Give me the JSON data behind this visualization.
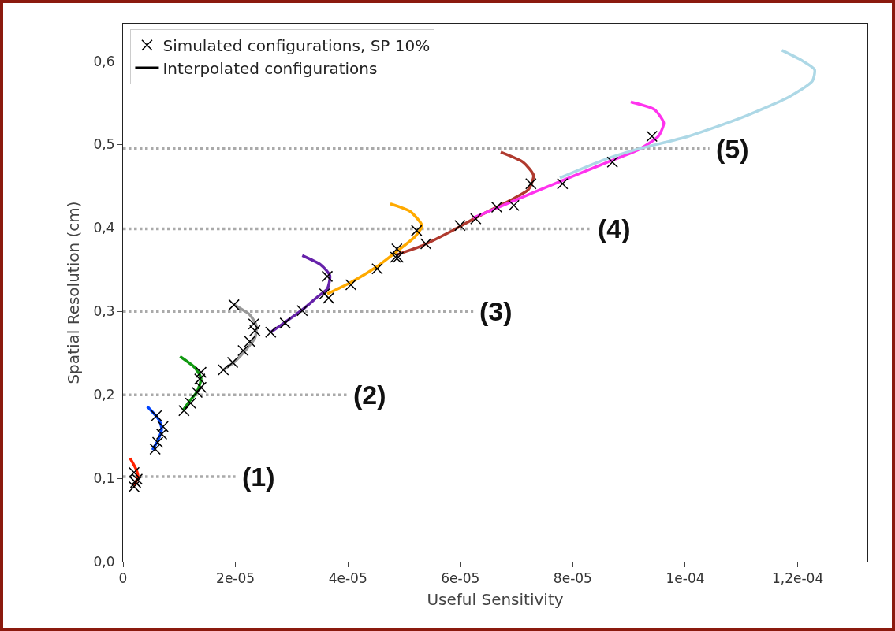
{
  "chart_data": {
    "type": "line",
    "xlabel": "Useful Sensitivity",
    "ylabel": "Spatial Resolution (cm)",
    "xlim": [
      0,
      0.0001324
    ],
    "ylim": [
      0,
      0.645
    ],
    "xticks": [
      0,
      {
        "value": 2e-05,
        "label": "2e-05"
      },
      {
        "value": 4e-05,
        "label": "4e-05"
      },
      {
        "value": 6e-05,
        "label": "6e-05"
      },
      {
        "value": 8e-05,
        "label": "8e-05"
      },
      {
        "value": 0.0001,
        "label": "1e-04"
      },
      {
        "value": 0.00012,
        "label": "1,2e-04"
      }
    ],
    "yticks": [
      {
        "value": 0,
        "label": "0,0"
      },
      {
        "value": 0.1,
        "label": "0,1"
      },
      {
        "value": 0.2,
        "label": "0,2"
      },
      {
        "value": 0.3,
        "label": "0,3"
      },
      {
        "value": 0.4,
        "label": "0,4"
      },
      {
        "value": 0.5,
        "label": "0,5"
      },
      {
        "value": 0.6,
        "label": "0,6"
      }
    ],
    "grid": false,
    "legend": "top left",
    "series": [
      {
        "color": "#aaaaaa",
        "line_style": "dotted",
        "marker": "none",
        "x": [
          0,
          2e-05
        ],
        "values": [
          0.102,
          0.102
        ]
      },
      {
        "color": "#aaaaaa",
        "line_style": "dotted",
        "marker": "none",
        "x": [
          0,
          3.98e-05
        ],
        "values": [
          0.2,
          0.2
        ]
      },
      {
        "color": "#aaaaaa",
        "line_style": "dotted",
        "marker": "none",
        "x": [
          0,
          6.23e-05
        ],
        "values": [
          0.3,
          0.3
        ]
      },
      {
        "color": "#aaaaaa",
        "line_style": "dotted",
        "marker": "none",
        "x": [
          0,
          8.33e-05
        ],
        "values": [
          0.399,
          0.399
        ]
      },
      {
        "color": "#aaaaaa",
        "line_style": "dotted",
        "marker": "none",
        "x": [
          0,
          0.0001043
        ],
        "values": [
          0.495,
          0.495
        ]
      },
      {
        "color": "#ff2200",
        "line_style": "solid",
        "marker": "none",
        "x": [
          1.26e-06,
          2.38e-06,
          2.66e-06,
          1.96e-06
        ],
        "values": [
          0.124,
          0.11,
          0.102,
          0.091
        ]
      },
      {
        "color": "#0044ff",
        "line_style": "solid",
        "marker": "none",
        "x": [
          4.31e-06,
          6.41e-06,
          6.87e-06,
          6.17e-06,
          5.23e-06
        ],
        "values": [
          0.186,
          0.17,
          0.159,
          0.145,
          0.134
        ]
      },
      {
        "color": "#119911",
        "line_style": "solid",
        "marker": "none",
        "x": [
          1.014e-05,
          1.272e-05,
          1.388e-05,
          1.318e-05,
          1.178e-05,
          1.062e-05
        ],
        "values": [
          0.246,
          0.233,
          0.22,
          0.204,
          0.192,
          0.181
        ]
      },
      {
        "color": "#999999",
        "line_style": "solid",
        "marker": "none",
        "x": [
          1.973e-05,
          2.254e-05,
          2.37e-05,
          2.346e-05,
          2.16e-05,
          1.973e-05,
          1.785e-05
        ],
        "values": [
          0.308,
          0.296,
          0.283,
          0.268,
          0.252,
          0.239,
          0.23
        ]
      },
      {
        "color": "#6622aa",
        "line_style": "solid",
        "marker": "none",
        "x": [
          3.188e-05,
          3.516e-05,
          3.679e-05,
          3.633e-05,
          3.468e-05,
          3.188e-05,
          2.861e-05,
          2.627e-05
        ],
        "values": [
          0.367,
          0.356,
          0.343,
          0.327,
          0.318,
          0.302,
          0.286,
          0.275
        ]
      },
      {
        "color": "#ffaa00",
        "line_style": "solid",
        "marker": "none",
        "x": [
          4.754e-05,
          5.105e-05,
          5.316e-05,
          5.199e-05,
          4.871e-05,
          4.498e-05,
          4.029e-05,
          3.633e-05
        ],
        "values": [
          0.429,
          0.42,
          0.403,
          0.39,
          0.372,
          0.353,
          0.334,
          0.321
        ]
      },
      {
        "color": "#b03a2e",
        "line_style": "solid",
        "marker": "none",
        "x": [
          6.718e-05,
          7.115e-05,
          7.302e-05,
          7.209e-05,
          6.882e-05,
          6.321e-05,
          5.806e-05,
          5.292e-05,
          4.871e-05
        ],
        "values": [
          0.491,
          0.479,
          0.463,
          0.446,
          0.433,
          0.414,
          0.395,
          0.378,
          0.368
        ]
      },
      {
        "color": "#ff33ee",
        "line_style": "solid",
        "marker": "none",
        "x": [
          9.032e-05,
          9.453e-05,
          9.617e-05,
          9.523e-05,
          9.172e-05,
          8.658e-05,
          7.817e-05,
          6.788e-05,
          6.227e-05
        ],
        "values": [
          0.551,
          0.542,
          0.526,
          0.51,
          0.494,
          0.48,
          0.457,
          0.428,
          0.412
        ]
      },
      {
        "color": "#add8e6",
        "line_style": "solid",
        "marker": "none",
        "x": [
          0.0001172,
          0.0001207,
          0.000123,
          0.0001226,
          0.0001184,
          0.0001099,
          0.0001006,
          9.126e-05,
          8.565e-05,
          7.77e-05
        ],
        "values": [
          0.613,
          0.601,
          0.59,
          0.576,
          0.557,
          0.532,
          0.51,
          0.494,
          0.482,
          0.46
        ]
      },
      {
        "type": "scatter",
        "name": "Simulated configurations, SP 10%",
        "color": "#000000",
        "marker": "cross",
        "x": [
          1.96e-06,
          2.52e-06,
          2.24e-06,
          1.96e-06,
          5.94e-06,
          7.11e-06,
          6.87e-06,
          6.17e-06,
          5.71e-06,
          1.388e-05,
          1.365e-05,
          1.388e-05,
          1.318e-05,
          1.202e-05,
          1.084e-05,
          1.973e-05,
          2.324e-05,
          2.346e-05,
          2.254e-05,
          2.136e-05,
          1.95e-05,
          1.785e-05,
          3.633e-05,
          3.586e-05,
          3.656e-05,
          3.188e-05,
          2.885e-05,
          2.627e-05,
          5.222e-05,
          4.871e-05,
          4.848e-05,
          4.521e-05,
          4.053e-05,
          7.255e-05,
          6.952e-05,
          6.648e-05,
          6.274e-05,
          5.993e-05,
          5.386e-05,
          4.895e-05,
          9.407e-05,
          8.705e-05,
          7.817e-05
        ],
        "values": [
          0.107,
          0.099,
          0.095,
          0.09,
          0.175,
          0.162,
          0.153,
          0.143,
          0.135,
          0.227,
          0.219,
          0.209,
          0.203,
          0.19,
          0.181,
          0.308,
          0.285,
          0.277,
          0.264,
          0.253,
          0.239,
          0.23,
          0.342,
          0.321,
          0.316,
          0.301,
          0.286,
          0.275,
          0.397,
          0.375,
          0.365,
          0.351,
          0.332,
          0.453,
          0.427,
          0.425,
          0.411,
          0.403,
          0.381,
          0.365,
          0.51,
          0.479,
          0.453
        ]
      },
      {
        "name": "Interpolated configurations",
        "color": "#000000",
        "line_style": "solid",
        "marker": "none",
        "values": [
          null
        ]
      }
    ],
    "annotations": [
      {
        "text": "(1)",
        "x": 2e-05,
        "y": 0.102
      },
      {
        "text": "(2)",
        "x": 3.98e-05,
        "y": 0.2
      },
      {
        "text": "(3)",
        "x": 6.23e-05,
        "y": 0.3
      },
      {
        "text": "(4)",
        "x": 8.33e-05,
        "y": 0.399
      },
      {
        "text": "(5)",
        "x": 0.0001043,
        "y": 0.495
      }
    ]
  }
}
